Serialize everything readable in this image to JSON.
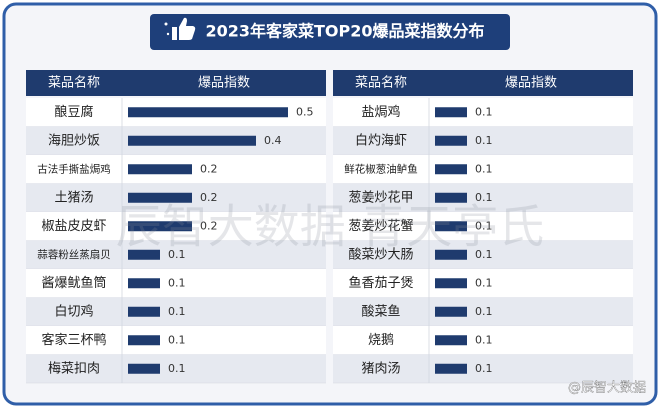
{
  "title": "2023年客家菜TOP20爆品菜指数分布",
  "watermark": "辰智大数据 青天亭氏",
  "source": "@辰智大数据",
  "chart_data": [
    {
      "type": "table-bar",
      "columns": [
        "菜品名称",
        "爆品指数"
      ],
      "color": "#1f3b6e",
      "xlim": [
        0,
        0.5
      ],
      "categories": [
        "酿豆腐",
        "海胆炒饭",
        "古法手撕盐焗鸡",
        "土猪汤",
        "椒盐皮皮虾",
        "蒜蓉粉丝蒸扇贝",
        "酱爆鱿鱼筒",
        "白切鸡",
        "客家三杯鸭",
        "梅菜扣肉"
      ],
      "values": [
        0.5,
        0.4,
        0.2,
        0.2,
        0.2,
        0.1,
        0.1,
        0.1,
        0.1,
        0.1
      ]
    },
    {
      "type": "table-bar",
      "columns": [
        "菜品名称",
        "爆品指数"
      ],
      "color": "#1f3b6e",
      "xlim": [
        0,
        0.5
      ],
      "categories": [
        "盐焗鸡",
        "白灼海虾",
        "鲜花椒葱油鲈鱼",
        "葱姜炒花甲",
        "葱姜炒花蟹",
        "酸菜炒大肠",
        "鱼香茄子煲",
        "酸菜鱼",
        "烧鹅",
        "猪肉汤"
      ],
      "values": [
        0.1,
        0.1,
        0.1,
        0.1,
        0.1,
        0.1,
        0.1,
        0.1,
        0.1,
        0.1
      ]
    }
  ]
}
